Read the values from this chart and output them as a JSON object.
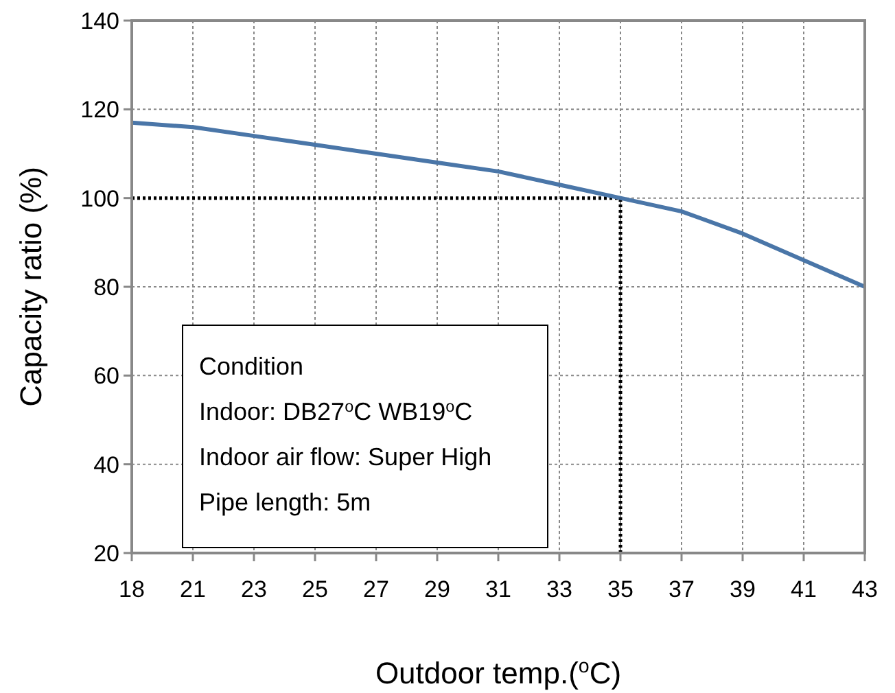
{
  "chart_data": {
    "type": "line",
    "xlabel": "Outdoor temp.($^{o}$C)",
    "ylabel": "Capacity ratio (%)",
    "categories": [
      "18",
      "21",
      "23",
      "25",
      "27",
      "29",
      "31",
      "33",
      "35",
      "37",
      "39",
      "41",
      "43"
    ],
    "series": [
      {
        "color": "#4a76a8",
        "values": [
          117,
          116,
          114,
          112,
          110,
          108,
          106,
          103,
          100,
          97,
          92,
          86,
          80
        ]
      }
    ],
    "ylim": [
      20,
      140
    ],
    "yticks": [
      20,
      40,
      60,
      80,
      100,
      120,
      140
    ],
    "grid": true,
    "marker": "none",
    "line_style": "solid",
    "ref_lines": [
      {
        "axis": "y",
        "value": 100,
        "color": "#000000",
        "line_style": "dotted"
      },
      {
        "axis": "x",
        "value": "35",
        "color": "#000000",
        "line_style": "dotted"
      }
    ],
    "annotations": [
      "Condition",
      "Indoor: DB27$^{o}$C WB19$^{o}$C",
      "Indoor air flow: Super High",
      "Pipe length: 5m"
    ]
  }
}
